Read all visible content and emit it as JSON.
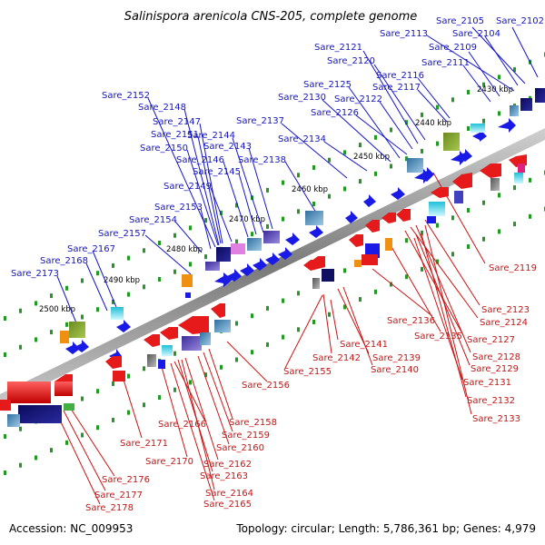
{
  "title": "Salinispora arenicola CNS-205, complete genome",
  "footer": {
    "accession": "Accession: NC_009953",
    "summary": "Topology: circular; Length: 5,786,361 bp; Genes: 4,979"
  },
  "colors": {
    "forward_gene": "#1a1ae6",
    "reverse_gene": "#e61a1a",
    "forward_label": "#1414c8",
    "reverse_label": "#c81414",
    "backbone": "#808080",
    "tick": "#229922"
  },
  "ticks": [
    "2430 kbp",
    "2440 kbp",
    "2450 kbp",
    "2460 kbp",
    "2470 kbp",
    "2480 kbp",
    "2490 kbp",
    "2500 kbp"
  ],
  "forward_labels": [
    "Sare_2105",
    "Sare_2102",
    "Sare_2113",
    "Sare_2104",
    "Sare_2121",
    "Sare_2109",
    "Sare_2120",
    "Sare_2111",
    "Sare_2116",
    "Sare_2125",
    "Sare_2117",
    "Sare_2130",
    "Sare_2122",
    "Sare_2152",
    "Sare_2126",
    "Sare_2148",
    "Sare_2137",
    "Sare_2147",
    "Sare_2144",
    "Sare_2151",
    "Sare_2134",
    "Sare_2150",
    "Sare_2143",
    "Sare_2146",
    "Sare_2138",
    "Sare_2145",
    "Sare_2149",
    "Sare_2153",
    "Sare_2154",
    "Sare_2157",
    "Sare_2167",
    "Sare_2168",
    "Sare_2173"
  ],
  "reverse_labels": [
    "Sare_2119",
    "Sare_2123",
    "Sare_2124",
    "Sare_2136",
    "Sare_2127",
    "Sare_2135",
    "Sare_2141",
    "Sare_2128",
    "Sare_2142",
    "Sare_2139",
    "Sare_2129",
    "Sare_2140",
    "Sare_2155",
    "Sare_2131",
    "Sare_2156",
    "Sare_2132",
    "Sare_2133",
    "Sare_2158",
    "Sare_2166",
    "Sare_2159",
    "Sare_2171",
    "Sare_2160",
    "Sare_2170",
    "Sare_2162",
    "Sare_2163",
    "Sare_2176",
    "Sare_2164",
    "Sare_2177",
    "Sare_2165",
    "Sare_2178"
  ]
}
